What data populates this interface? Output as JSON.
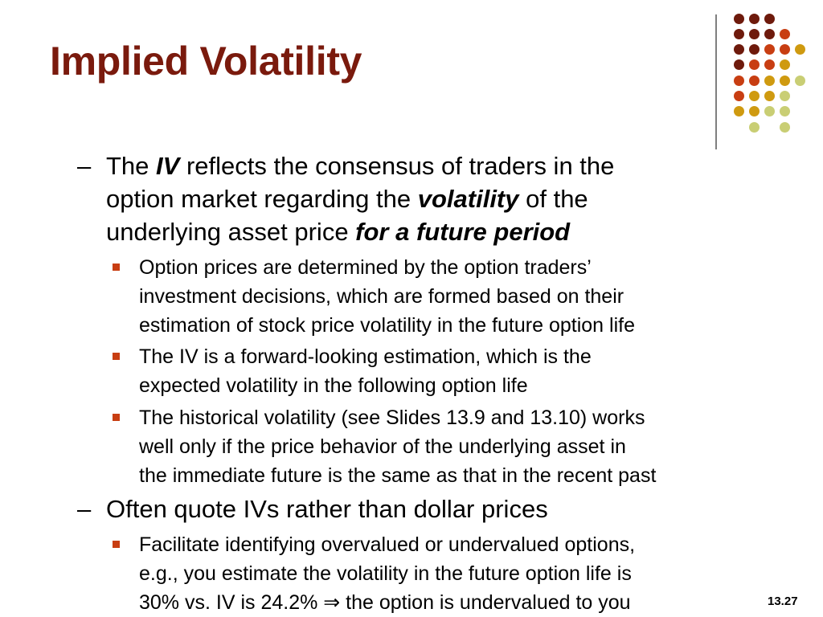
{
  "slide": {
    "title": "Implied Volatility",
    "number": "13.27"
  },
  "colors": {
    "title": "#7a1a0d",
    "bullet": "#c83e12",
    "divider": "#7f7f7f",
    "dot_palette": [
      "#6e1a0c",
      "#c83e12",
      "#cf9a10",
      "#c9ce74"
    ]
  },
  "bullets": [
    {
      "marker": "–",
      "lines": [
        [
          {
            "text": "The "
          },
          {
            "text": "IV",
            "emph": true
          },
          {
            "text": " reflects the consensus of traders in the"
          }
        ],
        [
          {
            "text": "option market regarding the "
          },
          {
            "text": "volatility",
            "emph": true
          },
          {
            "text": " of the"
          }
        ],
        [
          {
            "text": "underlying asset price "
          },
          {
            "text": "for a future period",
            "emph": true
          }
        ]
      ]
    },
    {
      "marker": "■",
      "lines": [
        "Option prices are determined by the option traders’",
        "investment decisions, which are formed based on their",
        "estimation of stock price volatility in the future option life"
      ]
    },
    {
      "marker": "■",
      "lines": [
        "The IV is a forward-looking estimation, which is the",
        "expected volatility in the following option life"
      ]
    },
    {
      "marker": "■",
      "lines": [
        "The historical volatility (see Slides 13.9 and 13.10) works",
        "well only if the price behavior of the underlying asset in",
        "the immediate future is the same as that in the recent past"
      ]
    },
    {
      "marker": "–",
      "lines": [
        "Often quote IVs rather than dollar prices"
      ]
    },
    {
      "marker": "■",
      "lines": [
        "Facilitate identifying overvalued or undervalued options,",
        "e.g., you estimate the volatility in the future option life is",
        "30% vs. IV is 24.2% ⇒ the option is undervalued to you"
      ]
    }
  ]
}
